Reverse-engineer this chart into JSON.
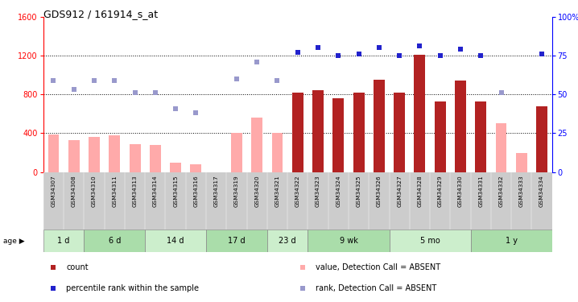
{
  "title": "GDS912 / 161914_s_at",
  "samples": [
    "GSM34307",
    "GSM34308",
    "GSM34310",
    "GSM34311",
    "GSM34313",
    "GSM34314",
    "GSM34315",
    "GSM34316",
    "GSM34317",
    "GSM34319",
    "GSM34320",
    "GSM34321",
    "GSM34322",
    "GSM34323",
    "GSM34324",
    "GSM34325",
    "GSM34326",
    "GSM34327",
    "GSM34328",
    "GSM34329",
    "GSM34330",
    "GSM34331",
    "GSM34332",
    "GSM34333",
    "GSM34334"
  ],
  "count_values": [
    0,
    0,
    0,
    0,
    0,
    0,
    0,
    0,
    0,
    0,
    0,
    0,
    820,
    840,
    760,
    820,
    950,
    820,
    1210,
    730,
    940,
    730,
    0,
    0,
    680
  ],
  "count_absent": [
    390,
    330,
    360,
    380,
    290,
    280,
    100,
    80,
    0,
    400,
    560,
    400,
    0,
    0,
    0,
    0,
    0,
    0,
    0,
    0,
    0,
    0,
    500,
    200,
    0
  ],
  "rank_values_pct": [
    0,
    0,
    0,
    0,
    0,
    0,
    0,
    0,
    0,
    0,
    0,
    0,
    77,
    80,
    75,
    76,
    80,
    75,
    81,
    75,
    79,
    75,
    0,
    0,
    76
  ],
  "rank_absent_pct": [
    59,
    53,
    59,
    59,
    51,
    51,
    41,
    38,
    0,
    60,
    71,
    59,
    0,
    0,
    0,
    0,
    0,
    0,
    0,
    0,
    0,
    0,
    51,
    0,
    0
  ],
  "age_groups": [
    {
      "label": "1 d",
      "start": 0,
      "end": 2
    },
    {
      "label": "6 d",
      "start": 2,
      "end": 5
    },
    {
      "label": "14 d",
      "start": 5,
      "end": 8
    },
    {
      "label": "17 d",
      "start": 8,
      "end": 11
    },
    {
      "label": "23 d",
      "start": 11,
      "end": 13
    },
    {
      "label": "9 wk",
      "start": 13,
      "end": 17
    },
    {
      "label": "5 mo",
      "start": 17,
      "end": 21
    },
    {
      "label": "1 y",
      "start": 21,
      "end": 25
    }
  ],
  "ylim_left": [
    0,
    1600
  ],
  "ylim_right": [
    0,
    100
  ],
  "yticks_left": [
    0,
    400,
    800,
    1200,
    1600
  ],
  "yticks_right": [
    0,
    25,
    50,
    75,
    100
  ],
  "bar_color_red": "#b22222",
  "bar_color_pink": "#ffaaaa",
  "dot_color_blue": "#2222cc",
  "dot_color_lightblue": "#9999cc",
  "age_colors": [
    "#cceecc",
    "#aaddaa"
  ],
  "grid_color": "black",
  "bg_color": "white",
  "xlabel_bg": "#cccccc",
  "legend": [
    {
      "label": "count",
      "color": "#b22222"
    },
    {
      "label": "percentile rank within the sample",
      "color": "#2222cc"
    },
    {
      "label": "value, Detection Call = ABSENT",
      "color": "#ffaaaa"
    },
    {
      "label": "rank, Detection Call = ABSENT",
      "color": "#9999cc"
    }
  ]
}
